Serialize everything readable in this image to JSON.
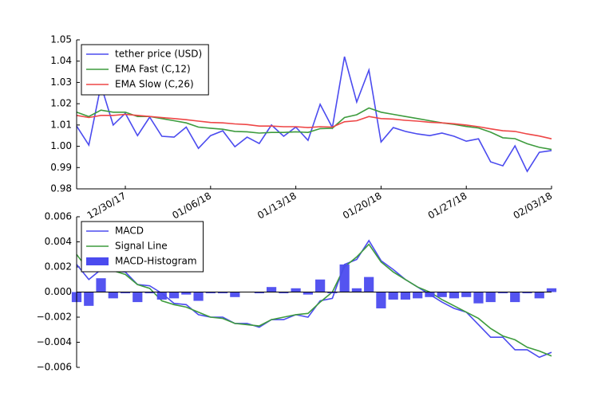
{
  "chart_data": [
    {
      "type": "line",
      "x": [
        "12/26/17",
        "12/27/17",
        "12/28/17",
        "12/29/17",
        "12/30/17",
        "12/31/17",
        "01/01/18",
        "01/02/18",
        "01/03/18",
        "01/04/18",
        "01/05/18",
        "01/06/18",
        "01/07/18",
        "01/08/18",
        "01/09/18",
        "01/10/18",
        "01/11/18",
        "01/12/18",
        "01/13/18",
        "01/14/18",
        "01/15/18",
        "01/16/18",
        "01/17/18",
        "01/18/18",
        "01/19/18",
        "01/20/18",
        "01/21/18",
        "01/22/18",
        "01/23/18",
        "01/24/18",
        "01/25/18",
        "01/26/18",
        "01/27/18",
        "01/28/18",
        "01/29/18",
        "01/30/18",
        "01/31/18",
        "02/01/18",
        "02/02/18",
        "02/03/18"
      ],
      "xlim": [
        "12/26/17",
        "02/03/18"
      ],
      "xticks": [
        "12/30/17",
        "01/06/18",
        "01/13/18",
        "01/20/18",
        "01/27/18",
        "02/03/18"
      ],
      "ylim": [
        0.98,
        1.05
      ],
      "yticks": [
        {
          "value": 0.98,
          "label": "0.98"
        },
        {
          "value": 0.99,
          "label": "0.99"
        },
        {
          "value": 1,
          "label": "1.00"
        },
        {
          "value": 1.01,
          "label": "1.01"
        },
        {
          "value": 1.02,
          "label": "1.02"
        },
        {
          "value": 1.03,
          "label": "1.03"
        },
        {
          "value": 1.04,
          "label": "1.04"
        },
        {
          "value": 1.05,
          "label": "1.05"
        }
      ],
      "legend": "upper left",
      "series": [
        {
          "name": "tether price (USD)",
          "color": "#4b4bef",
          "values": [
            1.0095,
            1.0006,
            1.0287,
            1.01,
            1.0155,
            1.005,
            1.0137,
            1.0047,
            1.0043,
            1.009,
            0.999,
            1.005,
            1.0073,
            0.9998,
            1.0043,
            1.0013,
            1.01,
            1.0047,
            1.009,
            1.0028,
            1.0197,
            1.0088,
            1.0421,
            1.0208,
            1.0358,
            1.002,
            1.0088,
            1.007,
            1.0058,
            1.005,
            1.0062,
            1.0047,
            1.0024,
            1.0035,
            0.9927,
            0.9908,
            1.0002,
            0.9882,
            0.9972,
            0.998
          ]
        },
        {
          "name": "EMA Fast (C,12)",
          "color": "#3d9b3d",
          "values": [
            1.016,
            1.014,
            1.017,
            1.016,
            1.016,
            1.014,
            1.014,
            1.013,
            1.012,
            1.011,
            1.009,
            1.0085,
            1.008,
            1.007,
            1.0068,
            1.0062,
            1.0065,
            1.0065,
            1.0068,
            1.0065,
            1.0083,
            1.0085,
            1.0135,
            1.0148,
            1.018,
            1.016,
            1.015,
            1.014,
            1.013,
            1.012,
            1.011,
            1.0103,
            1.0093,
            1.0086,
            1.0066,
            1.004,
            1.0036,
            1.0012,
            0.9995,
            0.9985
          ]
        },
        {
          "name": "EMA Slow (C,26)",
          "color": "#ee4646",
          "values": [
            1.0145,
            1.0135,
            1.0145,
            1.0145,
            1.015,
            1.0145,
            1.014,
            1.0135,
            1.013,
            1.0125,
            1.0118,
            1.0112,
            1.011,
            1.0105,
            1.0102,
            1.0095,
            1.0095,
            1.0092,
            1.0092,
            1.0088,
            1.0092,
            1.009,
            1.0115,
            1.012,
            1.014,
            1.013,
            1.0128,
            1.0122,
            1.0118,
            1.0113,
            1.011,
            1.0106,
            1.01,
            1.0092,
            1.0082,
            1.0073,
            1.007,
            1.0058,
            1.0048,
            1.0035
          ]
        }
      ]
    },
    {
      "type": "line",
      "x": [
        "12/26/17",
        "12/27/17",
        "12/28/17",
        "12/29/17",
        "12/30/17",
        "12/31/17",
        "01/01/18",
        "01/02/18",
        "01/03/18",
        "01/04/18",
        "01/05/18",
        "01/06/18",
        "01/07/18",
        "01/08/18",
        "01/09/18",
        "01/10/18",
        "01/11/18",
        "01/12/18",
        "01/13/18",
        "01/14/18",
        "01/15/18",
        "01/16/18",
        "01/17/18",
        "01/18/18",
        "01/19/18",
        "01/20/18",
        "01/21/18",
        "01/22/18",
        "01/23/18",
        "01/24/18",
        "01/25/18",
        "01/26/18",
        "01/27/18",
        "01/28/18",
        "01/29/18",
        "01/30/18",
        "01/31/18",
        "02/01/18",
        "02/02/18",
        "02/03/18"
      ],
      "xlim": [
        "12/26/17",
        "02/03/18"
      ],
      "ylim": [
        -0.006,
        0.006
      ],
      "yticks": [
        {
          "value": -0.006,
          "label": "−0.006"
        },
        {
          "value": -0.004,
          "label": "−0.004"
        },
        {
          "value": -0.002,
          "label": "−0.002"
        },
        {
          "value": 0,
          "label": "0.000"
        },
        {
          "value": 0.002,
          "label": "0.002"
        },
        {
          "value": 0.004,
          "label": "0.004"
        },
        {
          "value": 0.006,
          "label": "0.006"
        }
      ],
      "legend": "upper left",
      "series": [
        {
          "name": "MACD",
          "color": "#4b4bef",
          "kind": "line",
          "values": [
            0.0022,
            0.001,
            0.0018,
            0.0017,
            0.0016,
            0.0006,
            0.0005,
            -0.0001,
            -0.0009,
            -0.001,
            -0.0018,
            -0.002,
            -0.002,
            -0.0025,
            -0.0025,
            -0.0028,
            -0.0022,
            -0.0022,
            -0.0018,
            -0.002,
            -0.0007,
            -0.0005,
            0.0022,
            0.0026,
            0.0041,
            0.0025,
            0.0018,
            0.001,
            0.0004,
            -0.0002,
            -0.0008,
            -0.0013,
            -0.0016,
            -0.0026,
            -0.0036,
            -0.0036,
            -0.0046,
            -0.0046,
            -0.0052,
            -0.0048
          ]
        },
        {
          "name": "Signal Line",
          "color": "#3d9b3d",
          "kind": "line",
          "values": [
            0.003,
            0.0017,
            0.0017,
            0.0017,
            0.0014,
            0.0006,
            0.0003,
            -0.0007,
            -0.001,
            -0.0012,
            -0.0016,
            -0.002,
            -0.0021,
            -0.0025,
            -0.0026,
            -0.0027,
            -0.0022,
            -0.002,
            -0.0018,
            -0.0017,
            -0.0008,
            0.0,
            0.002,
            0.0028,
            0.0038,
            0.0024,
            0.0016,
            0.001,
            0.0004,
            0.0,
            -0.0006,
            -0.0011,
            -0.0016,
            -0.0021,
            -0.0029,
            -0.0035,
            -0.0038,
            -0.0044,
            -0.0047,
            -0.0051
          ]
        },
        {
          "name": "MACD-Histogram",
          "color": "#4b4bef",
          "kind": "bar",
          "values": [
            -0.0008,
            -0.0011,
            0.0011,
            -0.0005,
            -0.0001,
            -0.0008,
            -0.0001,
            -0.0006,
            -0.0005,
            -0.0002,
            -0.0007,
            -0.0001,
            -0.0001,
            -0.0004,
            0.0,
            -0.0001,
            0.0004,
            -0.0001,
            0.0003,
            -0.0002,
            0.001,
            -0.0001,
            0.0022,
            0.0003,
            0.0012,
            -0.0013,
            -0.0006,
            -0.0006,
            -0.0005,
            -0.0004,
            -0.0004,
            -0.0005,
            -0.0004,
            -0.0009,
            -0.0008,
            -0.0001,
            -0.0008,
            -0.0001,
            -0.0005,
            0.0003
          ]
        }
      ]
    }
  ]
}
